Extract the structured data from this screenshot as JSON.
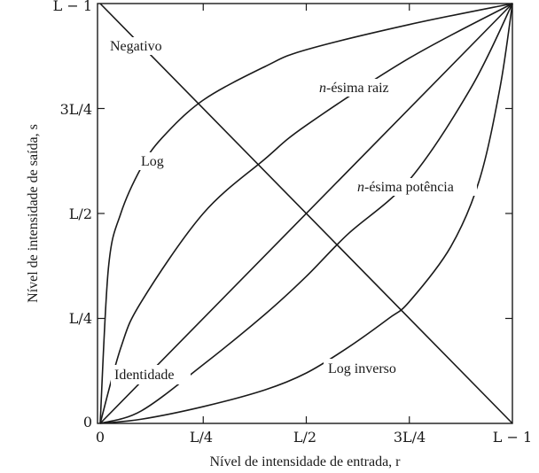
{
  "chart_data": {
    "type": "line",
    "xlabel": "Nível de intensidade de entrada, r",
    "ylabel": "Nível de intensidade de saída, s",
    "xlim": [
      0,
      1
    ],
    "ylim": [
      0,
      1
    ],
    "x_ticks": [
      {
        "value": 0,
        "label": "0"
      },
      {
        "value": 0.25,
        "label": "L/4"
      },
      {
        "value": 0.5,
        "label": "L/2"
      },
      {
        "value": 0.75,
        "label": "3L/4"
      },
      {
        "value": 1,
        "label": "L − 1"
      }
    ],
    "y_ticks": [
      {
        "value": 0,
        "label": "0"
      },
      {
        "value": 0.25,
        "label": "L/4"
      },
      {
        "value": 0.5,
        "label": "L/2"
      },
      {
        "value": 0.75,
        "label": "3L/4"
      },
      {
        "value": 1,
        "label": "L − 1"
      }
    ],
    "grid": false,
    "series": [
      {
        "name": "Negativo",
        "x": [
          0,
          1
        ],
        "y": [
          1,
          0
        ]
      },
      {
        "name": "Identidade",
        "x": [
          0,
          1
        ],
        "y": [
          0,
          1
        ]
      },
      {
        "name": "Log",
        "x": [
          0,
          0.02,
          0.05,
          0.1,
          0.15,
          0.25,
          0.4,
          0.5,
          0.75,
          1
        ],
        "y": [
          0,
          0.37,
          0.5,
          0.61,
          0.68,
          0.77,
          0.85,
          0.89,
          0.95,
          1
        ]
      },
      {
        "name": "n-ésima raiz",
        "x": [
          0,
          0.05,
          0.1,
          0.25,
          0.4,
          0.5,
          0.75,
          1
        ],
        "y": [
          0,
          0.18,
          0.29,
          0.5,
          0.63,
          0.71,
          0.87,
          1
        ]
      },
      {
        "name": "n-ésima potência",
        "x": [
          0,
          0.1,
          0.25,
          0.4,
          0.5,
          0.6,
          0.75,
          0.9,
          1
        ],
        "y": [
          0,
          0.03,
          0.14,
          0.26,
          0.35,
          0.45,
          0.58,
          0.8,
          1
        ]
      },
      {
        "name": "Log inverso",
        "x": [
          0,
          0.1,
          0.25,
          0.4,
          0.5,
          0.6,
          0.7,
          0.75,
          0.85,
          0.92,
          0.97,
          1
        ],
        "y": [
          0,
          0.01,
          0.04,
          0.08,
          0.12,
          0.18,
          0.25,
          0.29,
          0.42,
          0.58,
          0.8,
          1
        ]
      }
    ],
    "annotations": {
      "negativo": "Negativo",
      "identidade": "Identidade",
      "log": "Log",
      "raiz": "n-ésima raiz",
      "potencia": "n-ésima potência",
      "log_inverso": "Log inverso"
    }
  }
}
